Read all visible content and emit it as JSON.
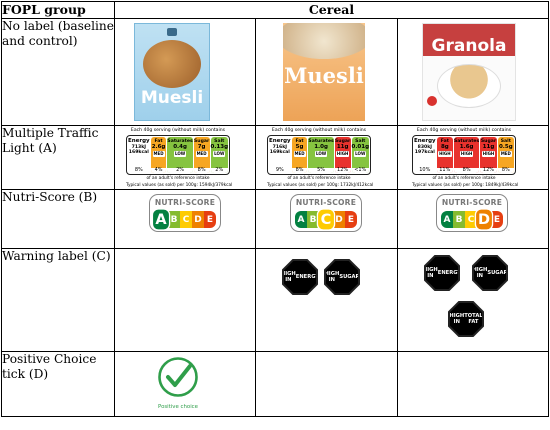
{
  "header": {
    "col1": "FOPL group",
    "col2": "Cereal"
  },
  "rows": {
    "no_label": "No label (baseline and control)",
    "mtl": "Multiple Traffic Light (A)",
    "nutri": "Nutri-Score (B)",
    "warning": "Warning label (C)",
    "positive": "Positive Choice tick (D)"
  },
  "products": [
    {
      "name": "Muesli",
      "box_color": "#aed8ef"
    },
    {
      "name": "Muesli",
      "box_color": "#f0ad63"
    },
    {
      "name": "Granola",
      "box_color": "#c6403f"
    }
  ],
  "traffic_light": {
    "caption": "Each 40g serving (without milk) contains",
    "footer1": "of an adult's reference intake",
    "items": [
      {
        "energy": "Energy",
        "energy_kj": "713kJ",
        "energy_kcal": "169kcal",
        "energy_pct": "8%",
        "typical": "Typical values (as sold) per 100g: 1594kJ/379kcal",
        "nutrients": [
          {
            "name": "Fat",
            "value": "2.6g",
            "level": "MED",
            "pct": "4%",
            "color": "#f6a623"
          },
          {
            "name": "Saturates",
            "value": "0.4g",
            "level": "LOW",
            "pct": "2%",
            "color": "#86c440"
          },
          {
            "name": "Sugar",
            "value": "7g",
            "level": "MED",
            "pct": "8%",
            "color": "#f6a623"
          },
          {
            "name": "Salt",
            "value": "0.13g",
            "level": "LOW",
            "pct": "2%",
            "color": "#86c440"
          }
        ]
      },
      {
        "energy": "Energy",
        "energy_kj": "716kJ",
        "energy_kcal": "169kcal",
        "energy_pct": "9%",
        "typical": "Typical values (as sold) per 100g: 1732kJ/412kcal",
        "nutrients": [
          {
            "name": "Fat",
            "value": "5g",
            "level": "MED",
            "pct": "8%",
            "color": "#f6a623"
          },
          {
            "name": "Saturates",
            "value": "1.0g",
            "level": "LOW",
            "pct": "5%",
            "color": "#86c440"
          },
          {
            "name": "Sugar",
            "value": "11g",
            "level": "HIGH",
            "pct": "12%",
            "color": "#e8322d"
          },
          {
            "name": "Salt",
            "value": "0.01g",
            "level": "LOW",
            "pct": "<1%",
            "color": "#86c440"
          }
        ]
      },
      {
        "energy": "Energy",
        "energy_kj": "830kJ",
        "energy_kcal": "197kcal",
        "energy_pct": "10%",
        "typical": "Typical values (as sold) per 100g: 1849kJ/439kcal",
        "nutrients": [
          {
            "name": "Fat",
            "value": "8g",
            "level": "HIGH",
            "pct": "11%",
            "color": "#e8322d"
          },
          {
            "name": "Saturates",
            "value": "1.6g",
            "level": "HIGH",
            "pct": "8%",
            "color": "#e8322d"
          },
          {
            "name": "Sugar",
            "value": "11g",
            "level": "HIGH",
            "pct": "12%",
            "color": "#e8322d"
          },
          {
            "name": "Salt",
            "value": "0.5g",
            "level": "MED",
            "pct": "8%",
            "color": "#f6a623"
          }
        ]
      }
    ]
  },
  "nutri_score": {
    "title": "NUTRI-SCORE",
    "letters": [
      "A",
      "B",
      "C",
      "D",
      "E"
    ],
    "colors": [
      "#038141",
      "#85bb2f",
      "#fecb02",
      "#ee8100",
      "#e63e11"
    ],
    "selected": [
      "A",
      "C",
      "D"
    ]
  },
  "warning": {
    "col2": [
      [
        "HIGH IN",
        "ENERGY"
      ],
      [
        "HIGH IN",
        "SUGAR"
      ]
    ],
    "col3": [
      [
        "HIGH IN",
        "ENERGY"
      ],
      [
        "HIGH IN",
        "SUGAR"
      ],
      [
        "HIGH IN",
        "TOTAL FAT"
      ]
    ]
  },
  "positive_choice": {
    "label": "Positive choice",
    "color": "#2f9e4a"
  }
}
